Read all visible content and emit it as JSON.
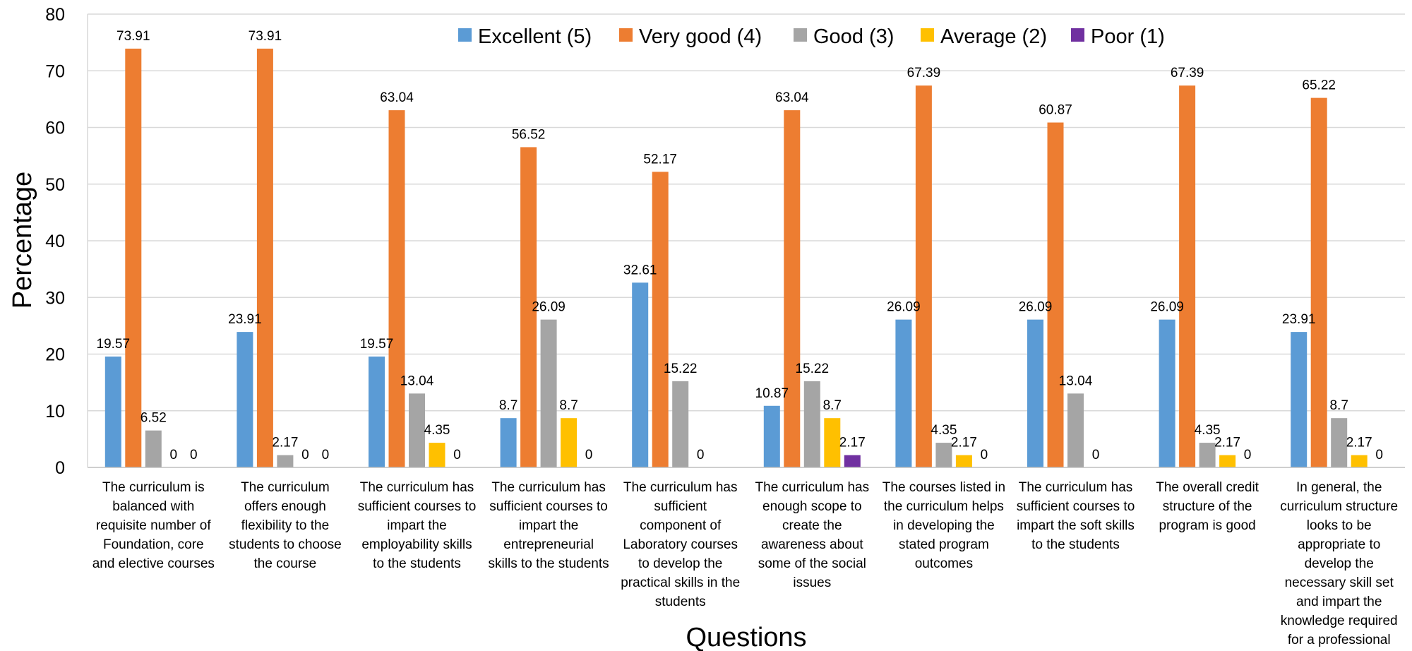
{
  "chart_data": {
    "type": "bar",
    "title": "",
    "xlabel": "Questions",
    "ylabel": "Percentage",
    "ylim": [
      0,
      80
    ],
    "yticks": [
      0,
      10,
      20,
      30,
      40,
      50,
      60,
      70,
      80
    ],
    "grid": true,
    "legend_position": "top",
    "categories": [
      "The curriculum is balanced with requisite number of Foundation, core and elective courses",
      "The curriculum offers enough flexibility to the students to choose the course",
      "The curriculum has sufficient courses to impart the employability skills to the students",
      "The curriculum has sufficient courses to impart the entrepreneurial skills to the students",
      "The curriculum has sufficient component of Laboratory courses to develop the practical skills in the students",
      "The curriculum has enough scope to create the awareness about some of the social issues",
      "The courses listed in the curriculum helps in developing the stated program outcomes",
      "The curriculum has sufficient courses to impart the soft skills to the students",
      "The overall credit structure of the program is good",
      "In general, the curriculum structure looks to be appropriate to develop the necessary skill set and impart the knowledge required for a professional"
    ],
    "category_lines": [
      [
        "The curriculum is",
        "balanced with",
        "requisite number of",
        "Foundation, core",
        "and elective courses"
      ],
      [
        "The curriculum",
        "offers enough",
        "flexibility to the",
        "students to choose",
        "the course"
      ],
      [
        "The curriculum has",
        "sufficient courses to",
        "impart the",
        "employability skills",
        "to the students"
      ],
      [
        "The curriculum has",
        "sufficient courses to",
        "impart the",
        "entrepreneurial",
        "skills to the students"
      ],
      [
        "The curriculum has",
        "sufficient",
        "component of",
        "Laboratory courses",
        "to develop the",
        "practical skills in the",
        "students"
      ],
      [
        "The curriculum has",
        "enough scope to",
        "create the",
        "awareness about",
        "some of the social",
        "issues"
      ],
      [
        "The courses listed in",
        "the curriculum helps",
        "in developing the",
        "stated program",
        "outcomes"
      ],
      [
        "The curriculum has",
        "sufficient courses to",
        "impart the soft skills",
        "to the students"
      ],
      [
        "The overall credit",
        "structure of the",
        "program is good"
      ],
      [
        "In general, the",
        "curriculum structure",
        "looks to be",
        "appropriate to",
        "develop the",
        "necessary skill set",
        "and impart the",
        "knowledge required",
        "for a professional"
      ]
    ],
    "series": [
      {
        "name": "Excellent (5)",
        "color": "#5B9BD5",
        "values": [
          19.57,
          23.91,
          19.57,
          8.7,
          32.61,
          10.87,
          26.09,
          26.09,
          26.09,
          23.91
        ]
      },
      {
        "name": "Very good (4)",
        "color": "#ED7D31",
        "values": [
          73.91,
          73.91,
          63.04,
          56.52,
          52.17,
          63.04,
          67.39,
          60.87,
          67.39,
          65.22
        ]
      },
      {
        "name": "Good (3)",
        "color": "#A5A5A5",
        "values": [
          6.52,
          2.17,
          13.04,
          26.09,
          15.22,
          15.22,
          4.35,
          13.04,
          4.35,
          8.7
        ]
      },
      {
        "name": "Average (2)",
        "color": "#FFC000",
        "values": [
          0,
          0,
          4.35,
          8.7,
          0,
          8.7,
          2.17,
          0,
          2.17,
          2.17
        ]
      },
      {
        "name": "Poor (1)",
        "color": "#7030A0",
        "values": [
          0,
          0,
          0,
          0,
          null,
          2.17,
          0,
          null,
          0,
          0
        ]
      }
    ]
  }
}
